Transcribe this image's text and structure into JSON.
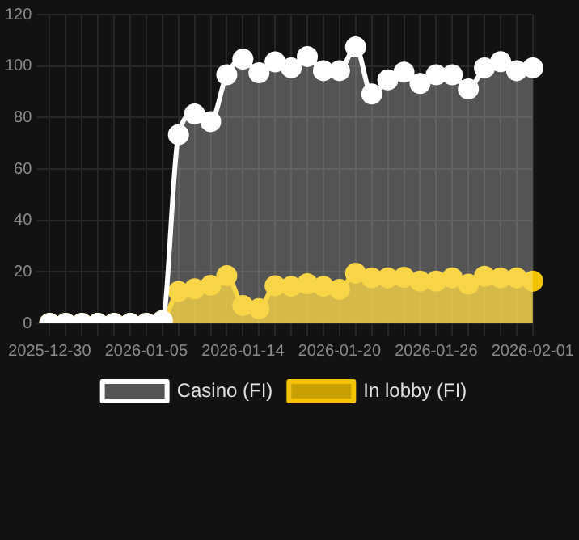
{
  "chart_data": {
    "type": "area",
    "categories": [
      "2025-12-30",
      null,
      null,
      null,
      null,
      null,
      "2026-01-05",
      null,
      null,
      null,
      null,
      null,
      "2026-01-14",
      null,
      null,
      null,
      null,
      null,
      "2026-01-20",
      null,
      null,
      null,
      null,
      null,
      "2026-01-26",
      null,
      null,
      null,
      null,
      null,
      "2026-02-01"
    ],
    "series": [
      {
        "name": "In lobby (FI)",
        "color": "#f5c400",
        "values": [
          0,
          0,
          0,
          0,
          0,
          0,
          0,
          1,
          12.4,
          13.4,
          14.8,
          18.5,
          6.9,
          5.7,
          14.6,
          14.4,
          15.4,
          14.4,
          13.2,
          19.5,
          17.7,
          17.7,
          17.9,
          16.4,
          16.4,
          17.7,
          15.2,
          18.3,
          17.7,
          17.7,
          16.4
        ]
      },
      {
        "name": "Casino (FI)",
        "color": "#ffffff",
        "values": [
          0,
          0,
          0,
          0,
          0,
          0,
          0,
          1,
          73.3,
          81.4,
          78.4,
          96.6,
          102.7,
          97.4,
          101.6,
          99.3,
          103.7,
          98.2,
          98.2,
          107.4,
          89.1,
          94.6,
          97.6,
          93.2,
          96.6,
          96.6,
          91.1,
          99.3,
          101.7,
          98.2,
          99.3
        ]
      }
    ],
    "ylim": [
      0,
      120
    ],
    "yticks": [
      0,
      20,
      40,
      60,
      80,
      100,
      120
    ],
    "grid": true,
    "legend": "bottom",
    "marker": "circle"
  }
}
